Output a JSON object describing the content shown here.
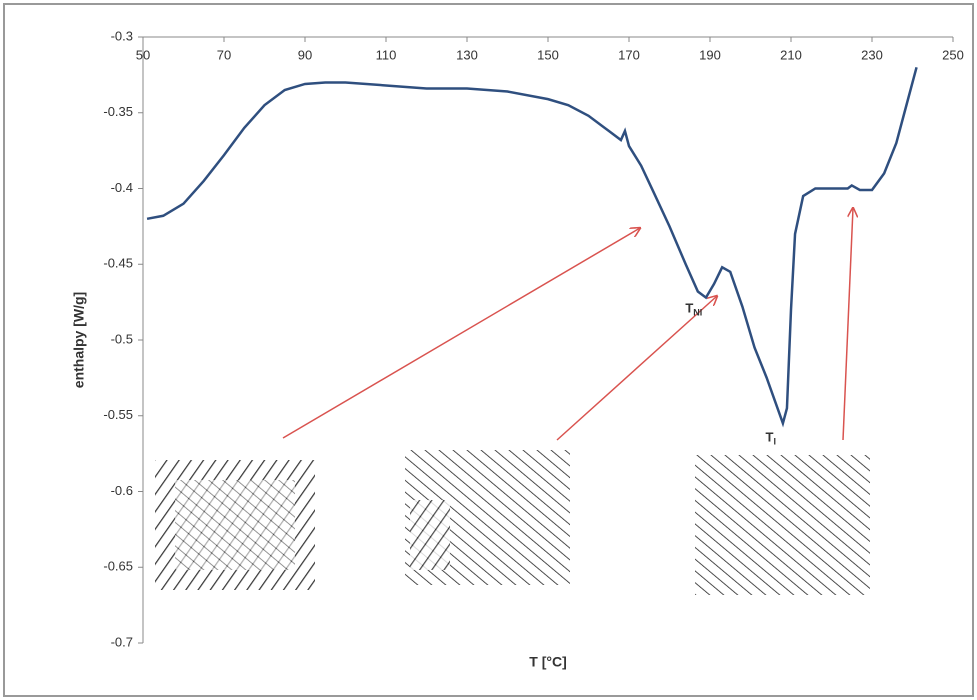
{
  "chart_data": {
    "type": "line",
    "x_label": "T [°C]",
    "y_label": "enthalpy [W/g]",
    "x": [
      51,
      55,
      60,
      65,
      70,
      75,
      80,
      85,
      90,
      95,
      100,
      110,
      120,
      130,
      140,
      150,
      155,
      160,
      165,
      168,
      169,
      170,
      173,
      176,
      180,
      184,
      187,
      189,
      191,
      193,
      195,
      198,
      201,
      204,
      206,
      208,
      209,
      210,
      211,
      213,
      216,
      220,
      224,
      225,
      227,
      230,
      233,
      236,
      238,
      241
    ],
    "series": [
      {
        "color": "#2f4f7f",
        "values": [
          -0.42,
          -0.418,
          -0.41,
          -0.395,
          -0.378,
          -0.36,
          -0.345,
          -0.335,
          -0.331,
          -0.33,
          -0.33,
          -0.332,
          -0.334,
          -0.334,
          -0.336,
          -0.341,
          -0.345,
          -0.352,
          -0.362,
          -0.368,
          -0.362,
          -0.372,
          -0.385,
          -0.402,
          -0.425,
          -0.45,
          -0.468,
          -0.472,
          -0.463,
          -0.452,
          -0.455,
          -0.478,
          -0.505,
          -0.525,
          -0.54,
          -0.555,
          -0.545,
          -0.48,
          -0.43,
          -0.405,
          -0.4,
          -0.4,
          -0.4,
          -0.398,
          -0.401,
          -0.401,
          -0.39,
          -0.37,
          -0.35,
          -0.32
        ]
      }
    ],
    "xlim": [
      50,
      250
    ],
    "xticks": [
      50,
      70,
      90,
      110,
      130,
      150,
      170,
      190,
      210,
      230,
      250
    ],
    "ylim": [
      -0.7,
      -0.3
    ],
    "yticks": [
      -0.3,
      -0.35,
      -0.4,
      -0.45,
      -0.5,
      -0.55,
      -0.6,
      -0.65,
      -0.7
    ],
    "annotations": [
      {
        "text": "T",
        "sub": "NI",
        "x": 186,
        "y": -0.48
      },
      {
        "text": "T",
        "sub": "I",
        "x": 205,
        "y": -0.565
      }
    ]
  }
}
